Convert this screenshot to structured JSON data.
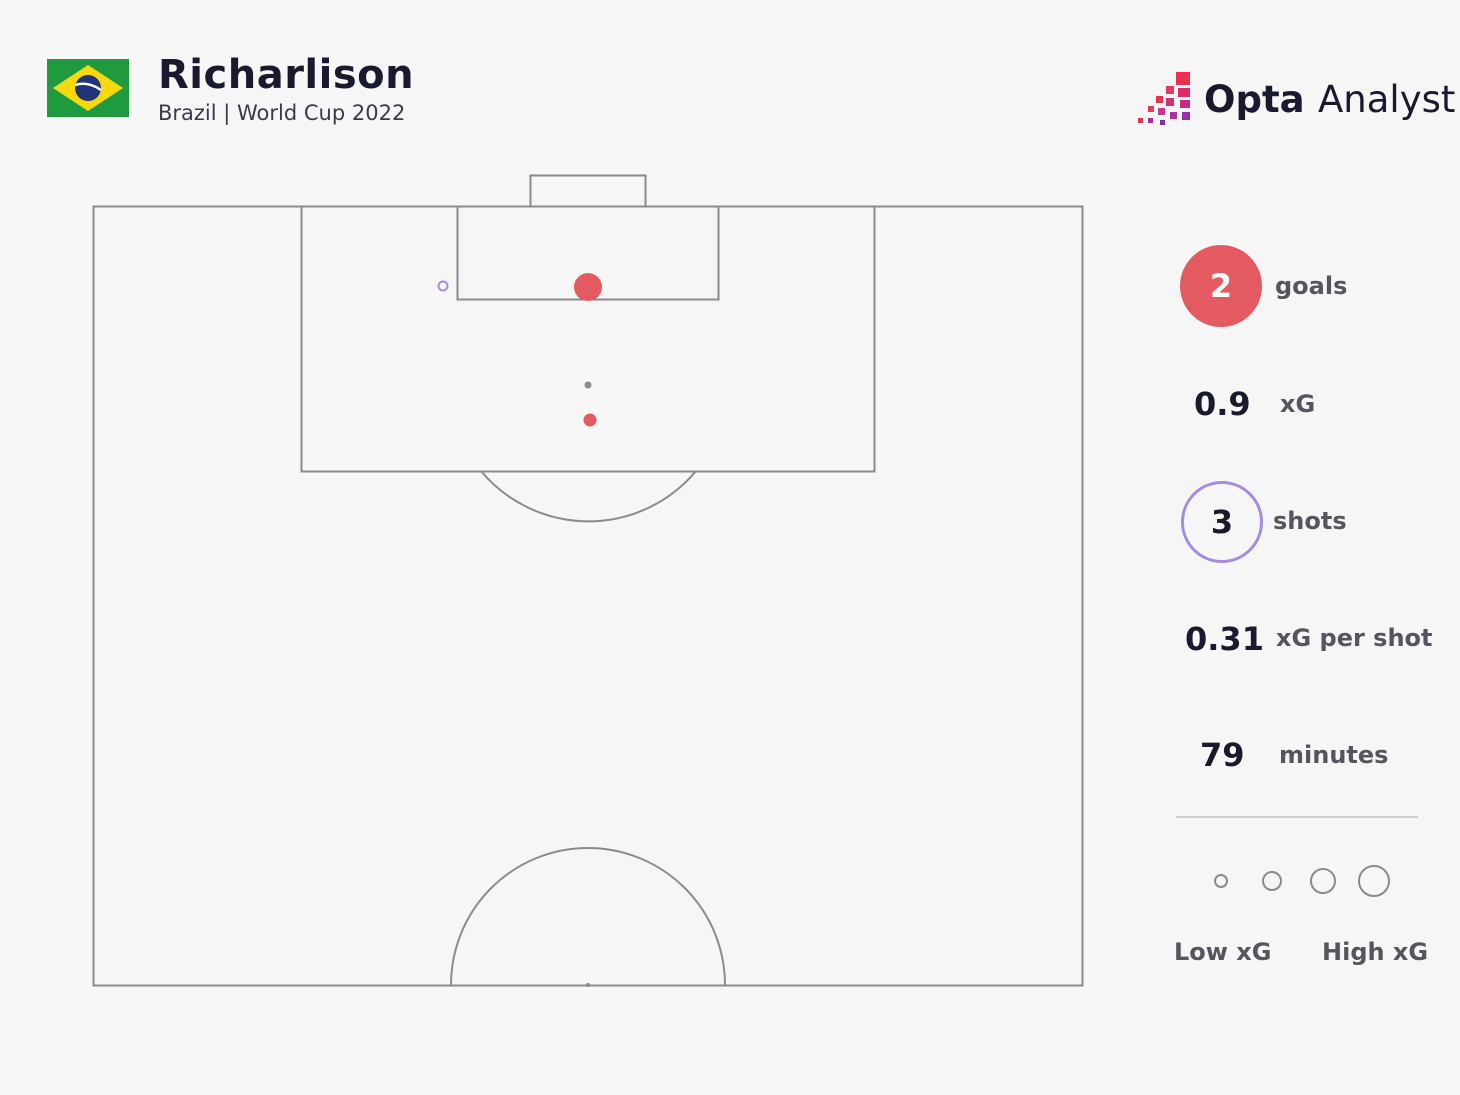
{
  "header": {
    "player_name": "Richarlison",
    "subtitle": "Brazil | World Cup 2022",
    "flag_icon": "brazil-flag-icon",
    "brand_word1": "Opta",
    "brand_word2": "Analyst",
    "brand_icon": "opta-analyst-logo-icon"
  },
  "stats": {
    "goals_value": "2",
    "goals_label": "goals",
    "xg_value": "0.9",
    "xg_label": "xG",
    "shots_value": "3",
    "shots_label": "shots",
    "xg_per_shot_value": "0.31",
    "xg_per_shot_label": "xG per shot",
    "minutes_value": "79",
    "minutes_label": "minutes"
  },
  "legend": {
    "low_label": "Low xG",
    "high_label": "High xG"
  },
  "colors": {
    "goal": "#e35b60",
    "non_goal": "#a78be0",
    "pitch_line": "#8a8a90",
    "background": "#f6f6f6",
    "text": "#1a1a2e"
  },
  "chart_data": {
    "type": "scatter",
    "pitch": "half-pitch, attacking toward goal at top",
    "shots": [
      {
        "outcome": "goal",
        "xg_relative": "high"
      },
      {
        "outcome": "goal",
        "xg_relative": "low"
      },
      {
        "outcome": "no goal",
        "xg_relative": "low"
      }
    ],
    "grid": false
  }
}
